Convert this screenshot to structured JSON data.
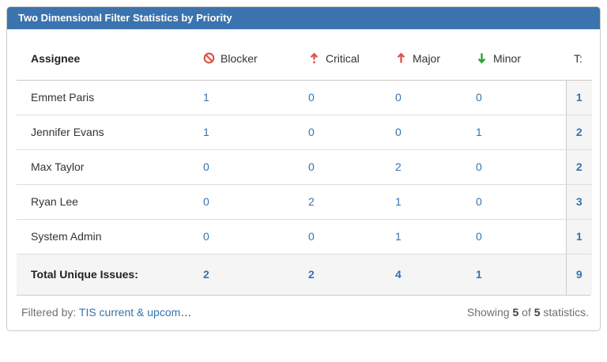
{
  "widget": {
    "title": "Two Dimensional Filter Statistics by Priority",
    "colors": {
      "titlebar_bg": "#3b73af",
      "link_blue": "#3572b0",
      "priority_red": "#d9544d",
      "blocker_red": "#dd5147",
      "minor_green": "#2aa22a",
      "total_col_bg": "#f5f5f5"
    }
  },
  "table": {
    "assignee_header": "Assignee",
    "total_header": "T:",
    "columns": [
      {
        "label": "Blocker",
        "icon": "no-entry-circle"
      },
      {
        "label": "Critical",
        "icon": "arrow-up-dashed-tail"
      },
      {
        "label": "Major",
        "icon": "arrow-up"
      },
      {
        "label": "Minor",
        "icon": "arrow-down"
      }
    ],
    "rows": [
      {
        "assignee": "Emmet Paris",
        "blocker": "1",
        "critical": "0",
        "major": "0",
        "minor": "0",
        "total": "1"
      },
      {
        "assignee": "Jennifer Evans",
        "blocker": "1",
        "critical": "0",
        "major": "0",
        "minor": "1",
        "total": "2"
      },
      {
        "assignee": "Max Taylor",
        "blocker": "0",
        "critical": "0",
        "major": "2",
        "minor": "0",
        "total": "2"
      },
      {
        "assignee": "Ryan Lee",
        "blocker": "0",
        "critical": "2",
        "major": "1",
        "minor": "0",
        "total": "3"
      },
      {
        "assignee": "System Admin",
        "blocker": "0",
        "critical": "0",
        "major": "1",
        "minor": "0",
        "total": "1"
      }
    ],
    "total_row": {
      "label": "Total Unique Issues:",
      "blocker": "2",
      "critical": "2",
      "major": "4",
      "minor": "1",
      "total": "9"
    }
  },
  "footer": {
    "filtered_by_label": "Filtered by:",
    "filter_link": "TIS current & upcom",
    "ellipsis": "…",
    "showing_prefix": "Showing",
    "showing_count": "5",
    "of_label": "of",
    "total_count": "5",
    "statistics_suffix": "statistics."
  }
}
